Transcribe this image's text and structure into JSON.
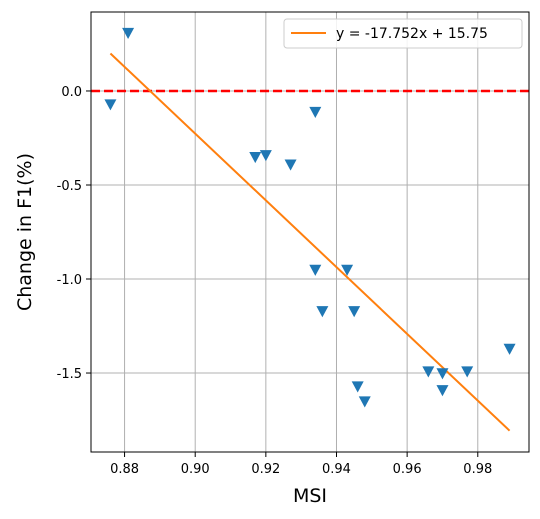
{
  "chart_data": {
    "type": "scatter",
    "xlabel": "MSI",
    "ylabel": "Change in F1(%)",
    "xlim": [
      0.8705,
      0.9945
    ],
    "ylim": [
      -1.92,
      0.42
    ],
    "xticks": [
      0.88,
      0.9,
      0.92,
      0.94,
      0.96,
      0.98
    ],
    "xtick_labels": [
      "0.88",
      "0.90",
      "0.92",
      "0.94",
      "0.96",
      "0.98"
    ],
    "yticks": [
      0.0,
      -0.5,
      -1.0,
      -1.5
    ],
    "ytick_labels": [
      "0.0",
      "-0.5",
      "-1.0",
      "-1.5"
    ],
    "grid": true,
    "legend_position": "top-right",
    "series": [
      {
        "type": "scatter",
        "marker": "triangle-down",
        "color": "#1f77b4",
        "points": [
          {
            "x": 0.876,
            "y": -0.07
          },
          {
            "x": 0.881,
            "y": 0.31
          },
          {
            "x": 0.917,
            "y": -0.35
          },
          {
            "x": 0.92,
            "y": -0.34
          },
          {
            "x": 0.927,
            "y": -0.39
          },
          {
            "x": 0.934,
            "y": -0.11
          },
          {
            "x": 0.934,
            "y": -0.95
          },
          {
            "x": 0.936,
            "y": -1.17
          },
          {
            "x": 0.943,
            "y": -0.95
          },
          {
            "x": 0.945,
            "y": -1.17
          },
          {
            "x": 0.946,
            "y": -1.57
          },
          {
            "x": 0.948,
            "y": -1.65
          },
          {
            "x": 0.966,
            "y": -1.49
          },
          {
            "x": 0.97,
            "y": -1.5
          },
          {
            "x": 0.97,
            "y": -1.59
          },
          {
            "x": 0.977,
            "y": -1.49
          },
          {
            "x": 0.989,
            "y": -1.37
          }
        ]
      },
      {
        "type": "line",
        "name": "y = -17.752x + 15.75",
        "color": "#ff7f0e",
        "slope": -17.752,
        "intercept": 15.75,
        "x_range": [
          0.876,
          0.989
        ]
      }
    ],
    "reference_line": {
      "y": 0.0,
      "color": "#ff0000",
      "style": "dashed"
    }
  }
}
